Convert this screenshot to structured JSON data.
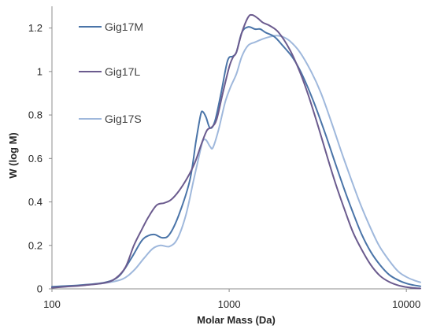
{
  "chart_data": {
    "type": "line",
    "title": "",
    "xlabel": "Molar Mass (Da)",
    "ylabel": "W (log M)",
    "xscale": "log",
    "xlim": [
      100,
      12000
    ],
    "ylim": [
      0,
      1.3
    ],
    "grid": false,
    "legend_position": "top-left",
    "x_ticks": [
      100,
      1000,
      10000
    ],
    "x_tick_labels": [
      "100",
      "1000",
      "10000"
    ],
    "y_ticks": [
      0,
      0.2,
      0.4,
      0.6,
      0.8,
      1,
      1.2
    ],
    "y_tick_labels": [
      "0",
      "0.2",
      "0.4",
      "0.6",
      "0.8",
      "1",
      "1.2"
    ],
    "series": [
      {
        "name": "Gig17M",
        "color": "#4a74a8",
        "points": [
          [
            100,
            0.01
          ],
          [
            120,
            0.013
          ],
          [
            150,
            0.018
          ],
          [
            200,
            0.03
          ],
          [
            240,
            0.06
          ],
          [
            280,
            0.14
          ],
          [
            320,
            0.22
          ],
          [
            350,
            0.245
          ],
          [
            380,
            0.25
          ],
          [
            420,
            0.235
          ],
          [
            460,
            0.25
          ],
          [
            520,
            0.34
          ],
          [
            600,
            0.5
          ],
          [
            650,
            0.68
          ],
          [
            690,
            0.8
          ],
          [
            710,
            0.815
          ],
          [
            740,
            0.79
          ],
          [
            780,
            0.74
          ],
          [
            830,
            0.77
          ],
          [
            900,
            0.9
          ],
          [
            980,
            1.05
          ],
          [
            1050,
            1.07
          ],
          [
            1100,
            1.09
          ],
          [
            1180,
            1.18
          ],
          [
            1280,
            1.205
          ],
          [
            1400,
            1.195
          ],
          [
            1500,
            1.195
          ],
          [
            1600,
            1.18
          ],
          [
            1800,
            1.16
          ],
          [
            2000,
            1.12
          ],
          [
            2300,
            1.06
          ],
          [
            2600,
            0.98
          ],
          [
            3000,
            0.86
          ],
          [
            3500,
            0.71
          ],
          [
            4000,
            0.57
          ],
          [
            4500,
            0.45
          ],
          [
            5000,
            0.35
          ],
          [
            5600,
            0.25
          ],
          [
            6300,
            0.17
          ],
          [
            7100,
            0.11
          ],
          [
            8000,
            0.065
          ],
          [
            9000,
            0.04
          ],
          [
            10000,
            0.025
          ],
          [
            11000,
            0.017
          ],
          [
            12000,
            0.012
          ]
        ]
      },
      {
        "name": "Gig17L",
        "color": "#6b5b8e",
        "points": [
          [
            100,
            0.005
          ],
          [
            120,
            0.01
          ],
          [
            150,
            0.016
          ],
          [
            200,
            0.028
          ],
          [
            230,
            0.05
          ],
          [
            260,
            0.1
          ],
          [
            290,
            0.2
          ],
          [
            320,
            0.27
          ],
          [
            350,
            0.33
          ],
          [
            390,
            0.385
          ],
          [
            430,
            0.395
          ],
          [
            470,
            0.41
          ],
          [
            520,
            0.45
          ],
          [
            580,
            0.51
          ],
          [
            640,
            0.58
          ],
          [
            700,
            0.67
          ],
          [
            750,
            0.73
          ],
          [
            800,
            0.745
          ],
          [
            850,
            0.78
          ],
          [
            920,
            0.9
          ],
          [
            1000,
            1.02
          ],
          [
            1050,
            1.065
          ],
          [
            1100,
            1.09
          ],
          [
            1180,
            1.18
          ],
          [
            1280,
            1.25
          ],
          [
            1350,
            1.26
          ],
          [
            1450,
            1.245
          ],
          [
            1550,
            1.225
          ],
          [
            1700,
            1.21
          ],
          [
            1900,
            1.18
          ],
          [
            2200,
            1.1
          ],
          [
            2500,
            1.0
          ],
          [
            2800,
            0.89
          ],
          [
            3200,
            0.74
          ],
          [
            3600,
            0.6
          ],
          [
            4000,
            0.48
          ],
          [
            4500,
            0.36
          ],
          [
            5000,
            0.26
          ],
          [
            5600,
            0.18
          ],
          [
            6300,
            0.11
          ],
          [
            7100,
            0.06
          ],
          [
            8000,
            0.032
          ],
          [
            9000,
            0.016
          ],
          [
            10000,
            0.008
          ],
          [
            11000,
            0.004
          ],
          [
            12000,
            0.002
          ]
        ]
      },
      {
        "name": "Gig17S",
        "color": "#9fb8dc",
        "points": [
          [
            100,
            0.008
          ],
          [
            120,
            0.012
          ],
          [
            150,
            0.017
          ],
          [
            200,
            0.027
          ],
          [
            250,
            0.045
          ],
          [
            290,
            0.085
          ],
          [
            330,
            0.14
          ],
          [
            370,
            0.185
          ],
          [
            410,
            0.2
          ],
          [
            460,
            0.195
          ],
          [
            510,
            0.23
          ],
          [
            570,
            0.34
          ],
          [
            630,
            0.5
          ],
          [
            680,
            0.62
          ],
          [
            710,
            0.68
          ],
          [
            740,
            0.685
          ],
          [
            780,
            0.655
          ],
          [
            810,
            0.65
          ],
          [
            870,
            0.73
          ],
          [
            950,
            0.86
          ],
          [
            1020,
            0.93
          ],
          [
            1100,
            0.99
          ],
          [
            1180,
            1.07
          ],
          [
            1280,
            1.12
          ],
          [
            1400,
            1.135
          ],
          [
            1550,
            1.15
          ],
          [
            1700,
            1.16
          ],
          [
            1850,
            1.165
          ],
          [
            2000,
            1.16
          ],
          [
            2200,
            1.14
          ],
          [
            2500,
            1.09
          ],
          [
            2900,
            1.0
          ],
          [
            3300,
            0.9
          ],
          [
            3800,
            0.76
          ],
          [
            4300,
            0.63
          ],
          [
            4900,
            0.5
          ],
          [
            5500,
            0.39
          ],
          [
            6200,
            0.29
          ],
          [
            7000,
            0.2
          ],
          [
            8000,
            0.13
          ],
          [
            9000,
            0.08
          ],
          [
            10000,
            0.055
          ],
          [
            11000,
            0.04
          ],
          [
            12000,
            0.03
          ]
        ]
      }
    ]
  }
}
